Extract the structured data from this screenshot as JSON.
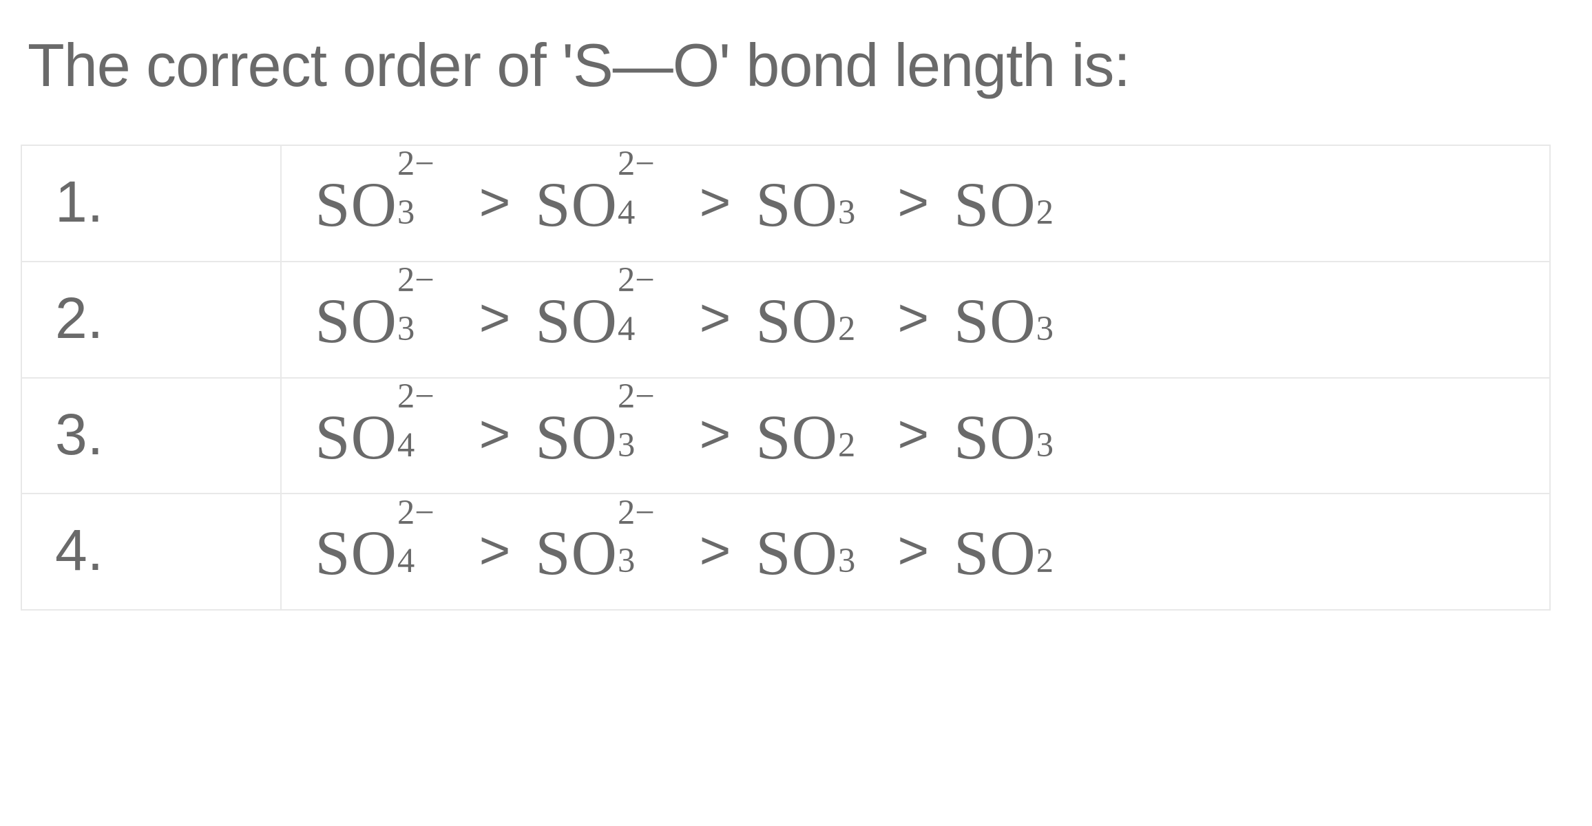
{
  "question": "The correct order of 'S—O' bond length is:",
  "table": {
    "border_color": "#e8e8e8",
    "text_color": "#6a6a6a",
    "font_size_question": 88,
    "font_size_cell": 84,
    "font_size_formula": 92,
    "rows": [
      {
        "num": "1.",
        "species": [
          {
            "base": "SO",
            "sub": "3",
            "sup": "2−"
          },
          {
            "base": "SO",
            "sub": "4",
            "sup": "2−"
          },
          {
            "base": "SO",
            "sub": "3",
            "sup": ""
          },
          {
            "base": "SO",
            "sub": "2",
            "sup": ""
          }
        ]
      },
      {
        "num": "2.",
        "species": [
          {
            "base": "SO",
            "sub": "3",
            "sup": "2−"
          },
          {
            "base": "SO",
            "sub": "4",
            "sup": "2−"
          },
          {
            "base": "SO",
            "sub": "2",
            "sup": ""
          },
          {
            "base": "SO",
            "sub": "3",
            "sup": ""
          }
        ]
      },
      {
        "num": "3.",
        "species": [
          {
            "base": "SO",
            "sub": "4",
            "sup": "2−"
          },
          {
            "base": "SO",
            "sub": "3",
            "sup": "2−"
          },
          {
            "base": "SO",
            "sub": "2",
            "sup": ""
          },
          {
            "base": "SO",
            "sub": "3",
            "sup": ""
          }
        ]
      },
      {
        "num": "4.",
        "species": [
          {
            "base": "SO",
            "sub": "4",
            "sup": "2−"
          },
          {
            "base": "SO",
            "sub": "3",
            "sup": "2−"
          },
          {
            "base": "SO",
            "sub": "3",
            "sup": ""
          },
          {
            "base": "SO",
            "sub": "2",
            "sup": ""
          }
        ]
      }
    ]
  }
}
